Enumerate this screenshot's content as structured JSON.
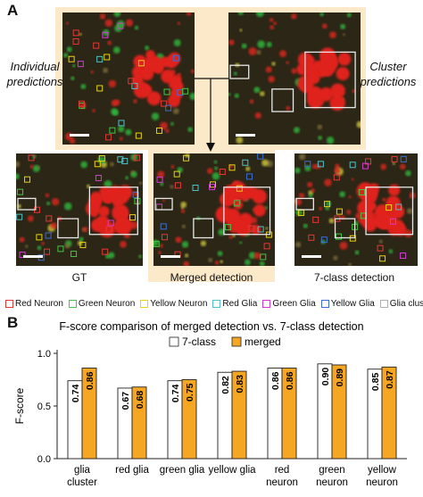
{
  "panel_a": {
    "letter": "A",
    "left_label_line1": "Individual",
    "left_label_line2": "predictions",
    "right_label_line1": "Cluster",
    "right_label_line2": "predictions",
    "captions": [
      "GT",
      "Merged detection",
      "7-class detection"
    ]
  },
  "legend": [
    {
      "label": "Red Neuron",
      "color": "#e53935"
    },
    {
      "label": "Green Neuron",
      "color": "#43c743"
    },
    {
      "label": "Yellow Neuron",
      "color": "#e8d40a"
    },
    {
      "label": "Red Glia",
      "color": "#4fc3c7"
    },
    {
      "label": "Green Glia",
      "color": "#d63ad6"
    },
    {
      "label": "Yellow Glia",
      "color": "#3a6fd8"
    },
    {
      "label": "Glia cluster",
      "color": "#b0b0b0"
    }
  ],
  "panel_b": {
    "letter": "B",
    "colors": {
      "7-class": "#ffffff",
      "merged": "#f5a623"
    }
  },
  "chart_data": {
    "type": "bar",
    "title": "F-score comparison of merged detection vs. 7-class detection",
    "ylabel": "F-score",
    "xlabel": "",
    "ylim": [
      0.0,
      1.0
    ],
    "yticks": [
      "0.0",
      "0.5",
      "1.0"
    ],
    "legend_position": "top",
    "grid": false,
    "categories": [
      [
        "glia",
        "cluster"
      ],
      [
        "red glia"
      ],
      [
        "green glia"
      ],
      [
        "yellow glia"
      ],
      [
        "red",
        "neuron"
      ],
      [
        "green",
        "neuron"
      ],
      [
        "yellow",
        "neuron"
      ]
    ],
    "series": [
      {
        "name": "7-class",
        "values": [
          0.74,
          0.67,
          0.74,
          0.82,
          0.86,
          0.9,
          0.85
        ],
        "labels": [
          "0.74",
          "0.67",
          "0.74",
          "0.82",
          "0.86",
          "0.90",
          "0.85"
        ]
      },
      {
        "name": "merged",
        "values": [
          0.86,
          0.68,
          0.75,
          0.83,
          0.86,
          0.89,
          0.87
        ],
        "labels": [
          "0.86",
          "0.68",
          "0.75",
          "0.83",
          "0.86",
          "0.89",
          "0.87"
        ]
      }
    ]
  }
}
